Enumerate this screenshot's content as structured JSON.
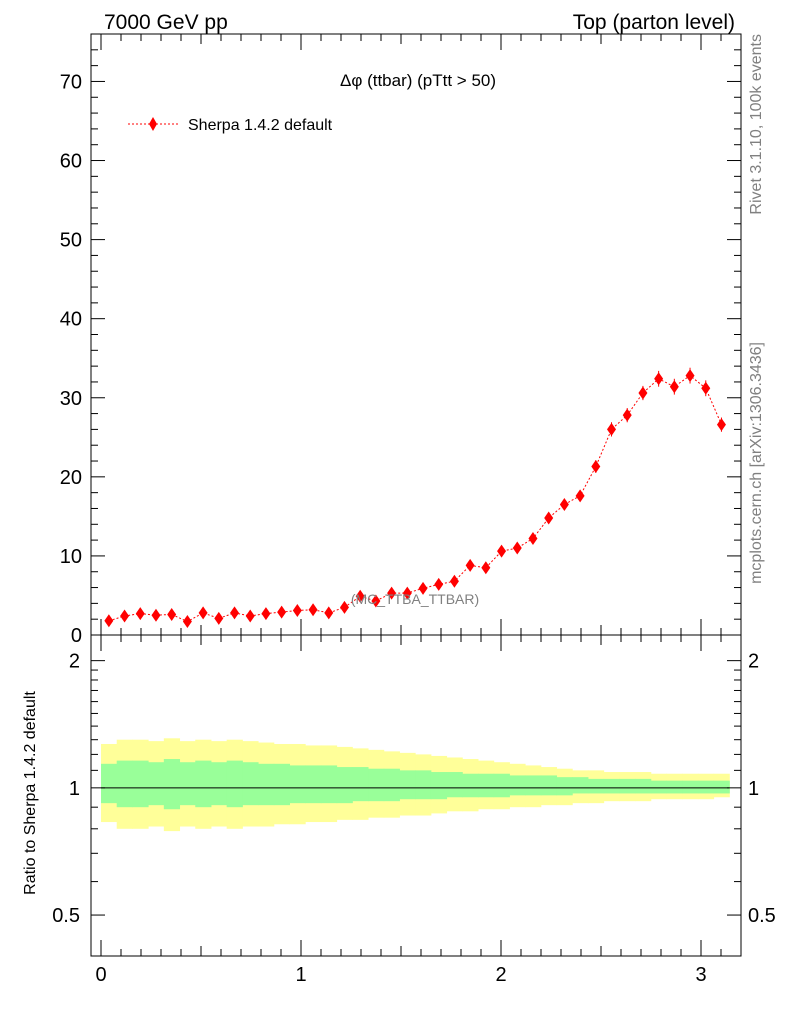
{
  "header": {
    "left": "7000 GeV pp",
    "right": "Top (parton level)"
  },
  "side_labels": {
    "rivet": "Rivet 3.1.10,  100k events",
    "mcplots": "mcplots.cern.ch [arXiv:1306.3436]"
  },
  "chart_data": [
    {
      "type": "scatter",
      "title": "Δφ (ttbar) (pTtt > 50)",
      "analysis_label": "(MC_TTBA_TTBAR)",
      "legend": {
        "label": "Sherpa 1.4.2 default",
        "placement": "top-left",
        "color": "#ff0000"
      },
      "xlim": [
        -0.05,
        3.2
      ],
      "ylim": [
        0,
        76
      ],
      "yticks": [
        0,
        10,
        20,
        30,
        40,
        50,
        60,
        70
      ],
      "series": [
        {
          "name": "Sherpa 1.4.2 default",
          "color": "#ff0000",
          "x": [
            0.0393,
            0.1178,
            0.1963,
            0.2749,
            0.3534,
            0.432,
            0.5105,
            0.589,
            0.6676,
            0.7461,
            0.8247,
            0.9032,
            0.9817,
            1.0603,
            1.1388,
            1.2174,
            1.2959,
            1.3744,
            1.453,
            1.5315,
            1.6101,
            1.6886,
            1.7671,
            1.8457,
            1.9242,
            2.0028,
            2.0813,
            2.1598,
            2.2384,
            2.3169,
            2.3955,
            2.474,
            2.5525,
            2.6311,
            2.7096,
            2.7882,
            2.8667,
            2.9452,
            3.0238,
            3.1023
          ],
          "y": [
            1.8,
            2.4,
            2.7,
            2.5,
            2.6,
            1.7,
            2.8,
            2.1,
            2.8,
            2.4,
            2.7,
            2.9,
            3.1,
            3.2,
            2.8,
            3.5,
            4.9,
            4.3,
            5.3,
            5.3,
            5.9,
            6.4,
            6.8,
            8.8,
            8.5,
            10.6,
            11.0,
            12.2,
            14.8,
            16.5,
            17.6,
            21.3,
            26.0,
            27.8,
            30.6,
            32.4,
            31.4,
            32.8,
            31.2,
            26.6
          ],
          "yerr": [
            0.3,
            0.3,
            0.3,
            0.3,
            0.3,
            0.3,
            0.3,
            0.3,
            0.3,
            0.3,
            0.3,
            0.3,
            0.4,
            0.4,
            0.4,
            0.4,
            0.4,
            0.4,
            0.4,
            0.5,
            0.5,
            0.5,
            0.5,
            0.5,
            0.5,
            0.6,
            0.6,
            0.6,
            0.7,
            0.7,
            0.7,
            0.8,
            0.9,
            0.9,
            0.9,
            1.0,
            1.0,
            1.0,
            1.0,
            0.9
          ]
        }
      ]
    },
    {
      "type": "area",
      "ylabel": "Ratio to Sherpa 1.4.2 default",
      "xlim": [
        -0.05,
        3.2
      ],
      "ylim": [
        0.4,
        2.3
      ],
      "log_y": true,
      "yticks": [
        0.5,
        1,
        2
      ],
      "xticks": [
        0,
        1,
        2,
        3
      ],
      "reference_line": 1,
      "bands": [
        {
          "name": "outer",
          "color": "#ffff99",
          "low": [
            0.83,
            0.8,
            0.8,
            0.81,
            0.79,
            0.81,
            0.8,
            0.81,
            0.8,
            0.81,
            0.81,
            0.82,
            0.82,
            0.83,
            0.83,
            0.84,
            0.84,
            0.85,
            0.85,
            0.86,
            0.86,
            0.87,
            0.88,
            0.88,
            0.89,
            0.89,
            0.9,
            0.9,
            0.91,
            0.91,
            0.92,
            0.92,
            0.93,
            0.93,
            0.93,
            0.94,
            0.94,
            0.94,
            0.94,
            0.95
          ],
          "high": [
            1.27,
            1.3,
            1.3,
            1.29,
            1.31,
            1.29,
            1.3,
            1.29,
            1.3,
            1.29,
            1.28,
            1.27,
            1.27,
            1.26,
            1.26,
            1.25,
            1.24,
            1.23,
            1.22,
            1.21,
            1.2,
            1.19,
            1.18,
            1.17,
            1.16,
            1.15,
            1.14,
            1.13,
            1.12,
            1.11,
            1.1,
            1.1,
            1.09,
            1.09,
            1.09,
            1.08,
            1.08,
            1.08,
            1.08,
            1.08
          ]
        },
        {
          "name": "inner",
          "color": "#99ff99",
          "low": [
            0.92,
            0.9,
            0.9,
            0.91,
            0.89,
            0.91,
            0.9,
            0.91,
            0.9,
            0.91,
            0.91,
            0.91,
            0.92,
            0.92,
            0.92,
            0.92,
            0.93,
            0.93,
            0.93,
            0.94,
            0.94,
            0.94,
            0.95,
            0.95,
            0.95,
            0.95,
            0.96,
            0.96,
            0.96,
            0.96,
            0.97,
            0.97,
            0.97,
            0.97,
            0.97,
            0.97,
            0.97,
            0.97,
            0.97,
            0.97
          ],
          "high": [
            1.14,
            1.16,
            1.16,
            1.15,
            1.17,
            1.15,
            1.16,
            1.15,
            1.16,
            1.15,
            1.14,
            1.14,
            1.13,
            1.13,
            1.13,
            1.12,
            1.12,
            1.11,
            1.11,
            1.1,
            1.1,
            1.09,
            1.09,
            1.08,
            1.08,
            1.08,
            1.07,
            1.07,
            1.07,
            1.06,
            1.06,
            1.05,
            1.05,
            1.05,
            1.05,
            1.04,
            1.04,
            1.04,
            1.04,
            1.04
          ]
        }
      ]
    }
  ]
}
